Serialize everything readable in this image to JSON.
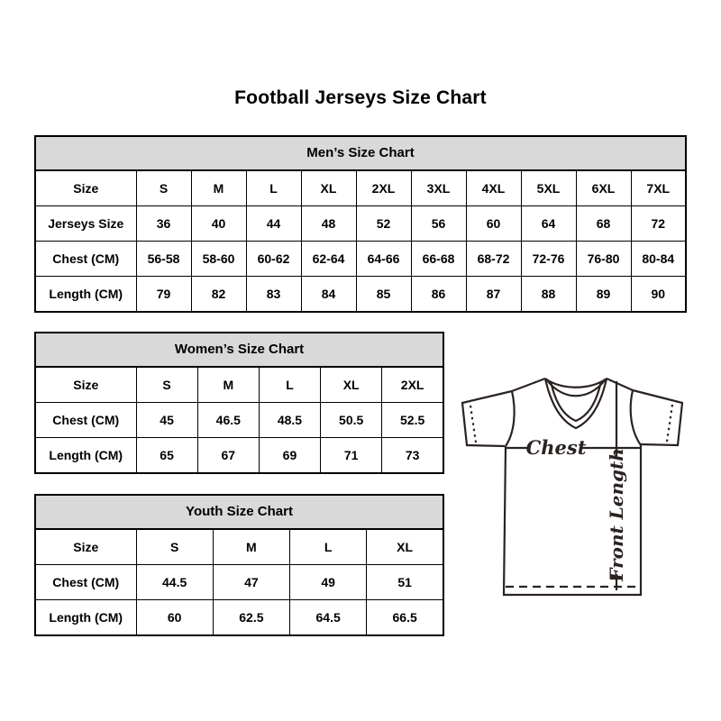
{
  "page": {
    "title": "Football Jerseys Size Chart"
  },
  "tables": {
    "mens": {
      "title": "Men’s Size Chart",
      "rows": [
        [
          "Size",
          "S",
          "M",
          "L",
          "XL",
          "2XL",
          "3XL",
          "4XL",
          "5XL",
          "6XL",
          "7XL"
        ],
        [
          "Jerseys Size",
          "36",
          "40",
          "44",
          "48",
          "52",
          "56",
          "60",
          "64",
          "68",
          "72"
        ],
        [
          "Chest (CM)",
          "56-58",
          "58-60",
          "60-62",
          "62-64",
          "64-66",
          "66-68",
          "68-72",
          "72-76",
          "76-80",
          "80-84"
        ],
        [
          "Length (CM)",
          "79",
          "82",
          "83",
          "84",
          "85",
          "86",
          "87",
          "88",
          "89",
          "90"
        ]
      ]
    },
    "womens": {
      "title": "Women’s Size Chart",
      "rows": [
        [
          "Size",
          "S",
          "M",
          "L",
          "XL",
          "2XL"
        ],
        [
          "Chest (CM)",
          "45",
          "46.5",
          "48.5",
          "50.5",
          "52.5"
        ],
        [
          "Length (CM)",
          "65",
          "67",
          "69",
          "71",
          "73"
        ]
      ]
    },
    "youth": {
      "title": "Youth Size Chart",
      "rows": [
        [
          "Size",
          "S",
          "M",
          "L",
          "XL"
        ],
        [
          "Chest (CM)",
          "44.5",
          "47",
          "49",
          "51"
        ],
        [
          "Length (CM)",
          "60",
          "62.5",
          "64.5",
          "66.5"
        ]
      ]
    }
  },
  "diagram": {
    "chest_label": "Chest",
    "front_length_label": "Front Length"
  },
  "colors": {
    "table_header_bg": "#d9d9d9",
    "table_border": "#000000",
    "line_art": "#2a2321"
  }
}
